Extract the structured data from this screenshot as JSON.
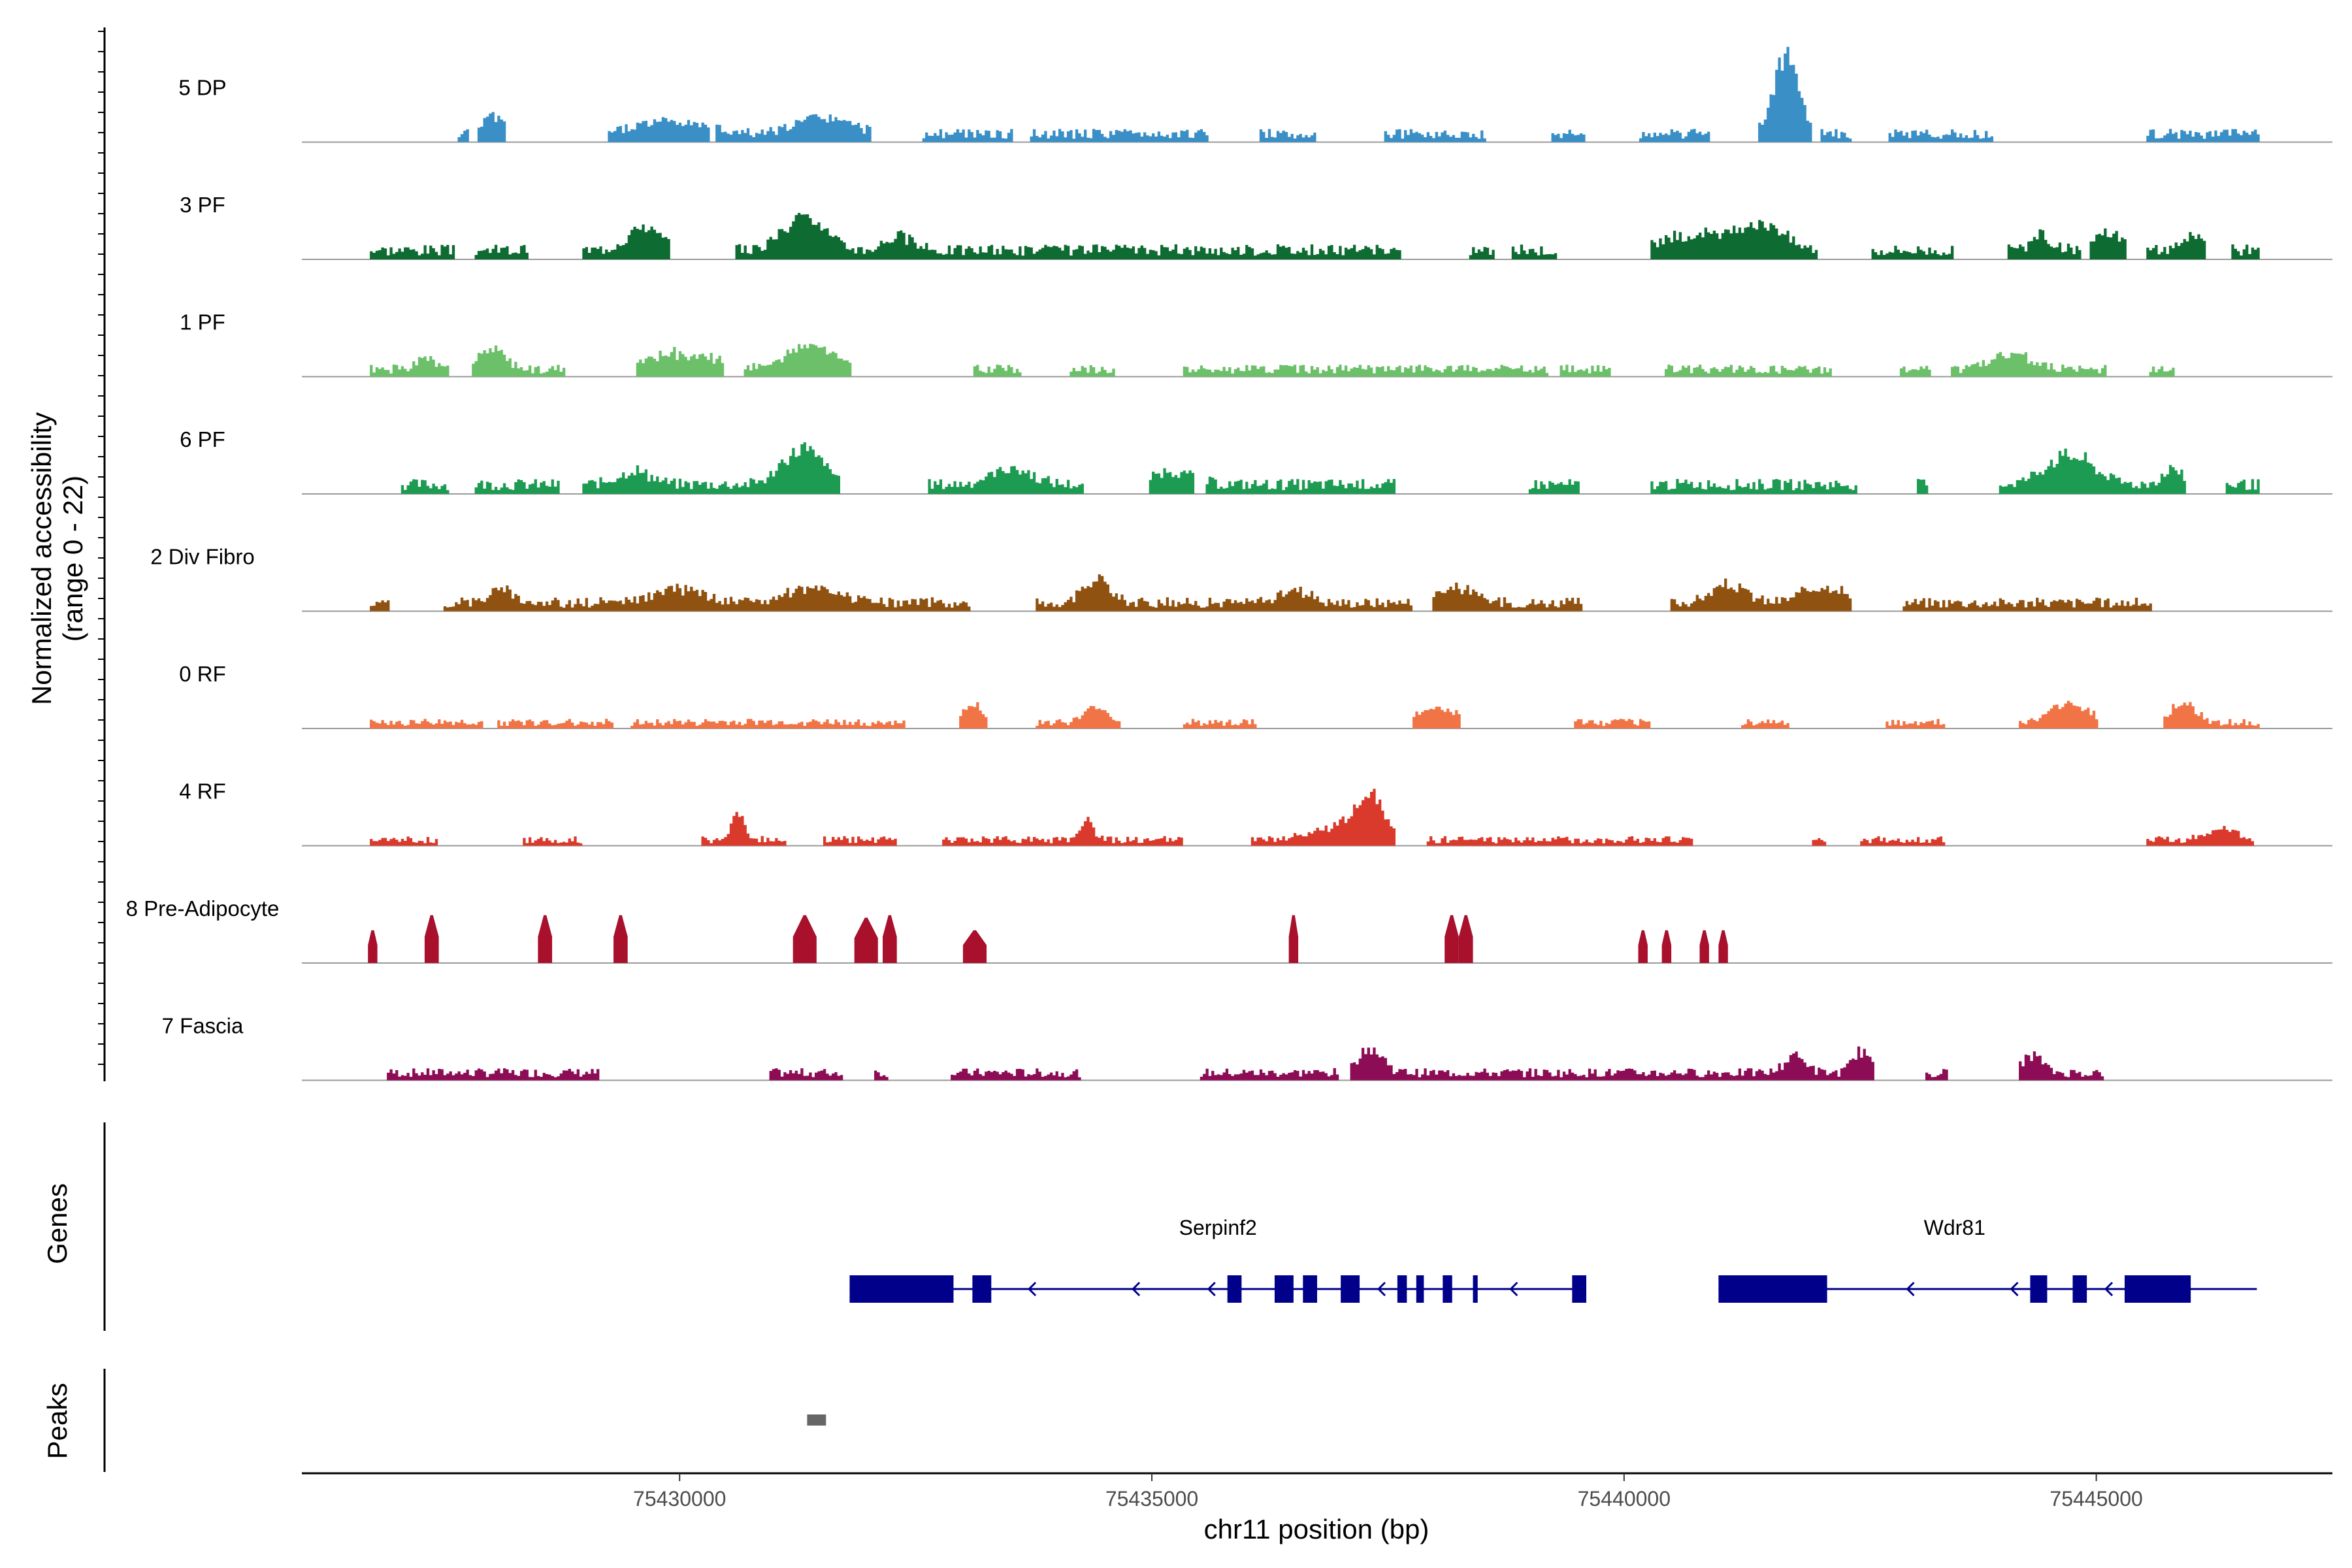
{
  "chart_data": {
    "type": "area",
    "title": "",
    "region": {
      "chromosome": "chr11",
      "start": 75426000,
      "end": 75447500
    },
    "xlabel": "chr11 position (bp)",
    "ylabel": "Normalized accessibility",
    "ylabel_sub": "(range 0 - 22)",
    "ylim": [
      0,
      22
    ],
    "x_ticks": [
      {
        "value": 75430000,
        "label": "75430000"
      },
      {
        "value": 75435000,
        "label": "75435000"
      },
      {
        "value": 75440000,
        "label": "75440000"
      },
      {
        "value": 75445000,
        "label": "75445000"
      }
    ],
    "panel_labels": {
      "genes": "Genes",
      "peaks": "Peaks"
    },
    "tracks": [
      {
        "name": "5 DP",
        "color": "#3A8FC7",
        "seed": 5,
        "density": 0.45,
        "base": 2.2,
        "peaks": [
          [
            75428000,
            3.5,
            160
          ],
          [
            75429900,
            3.0,
            500
          ],
          [
            75431500,
            3.5,
            400
          ],
          [
            75441700,
            18.0,
            180
          ]
        ]
      },
      {
        "name": "3 PF",
        "color": "#0E6B32",
        "seed": 3,
        "density": 0.6,
        "base": 2.5,
        "peaks": [
          [
            75429600,
            5.0,
            250
          ],
          [
            75431300,
            8.0,
            300
          ],
          [
            75432300,
            3.0,
            200
          ],
          [
            75440900,
            3.5,
            700
          ],
          [
            75441500,
            4.5,
            250
          ],
          [
            75444400,
            3.0,
            150
          ],
          [
            75445100,
            4.0,
            200
          ],
          [
            75446000,
            3.5,
            150
          ]
        ]
      },
      {
        "name": "1 PF",
        "color": "#6CC06A",
        "seed": 1,
        "density": 0.55,
        "base": 2.0,
        "peaks": [
          [
            75427300,
            2.5,
            120
          ],
          [
            75428000,
            4.0,
            200
          ],
          [
            75430000,
            3.5,
            500
          ],
          [
            75431400,
            5.5,
            350
          ],
          [
            75444100,
            3.0,
            300
          ]
        ]
      },
      {
        "name": "6 PF",
        "color": "#1E9B52",
        "seed": 6,
        "density": 0.55,
        "base": 2.5,
        "peaks": [
          [
            75429500,
            3.0,
            250
          ],
          [
            75431300,
            8.0,
            300
          ],
          [
            75433500,
            3.5,
            300
          ],
          [
            75435200,
            3.0,
            300
          ],
          [
            75444700,
            6.5,
            350
          ],
          [
            75445800,
            3.5,
            150
          ]
        ]
      },
      {
        "name": "2 Div Fibro",
        "color": "#8F5211",
        "seed": 2,
        "density": 0.62,
        "base": 2.3,
        "peaks": [
          [
            75428100,
            3.0,
            200
          ],
          [
            75430000,
            3.0,
            350
          ],
          [
            75431400,
            3.0,
            400
          ],
          [
            75434400,
            5.0,
            200
          ],
          [
            75436500,
            3.0,
            200
          ],
          [
            75438200,
            3.5,
            250
          ],
          [
            75441100,
            3.8,
            250
          ],
          [
            75442100,
            4.0,
            300
          ]
        ]
      },
      {
        "name": "0 RF",
        "color": "#F07446",
        "seed": 10,
        "density": 0.55,
        "base": 1.6,
        "peaks": [
          [
            75433100,
            4.0,
            150
          ],
          [
            75434400,
            3.5,
            150
          ],
          [
            75438000,
            3.0,
            300
          ],
          [
            75444700,
            4.0,
            300
          ],
          [
            75445900,
            4.0,
            200
          ]
        ]
      },
      {
        "name": "4 RF",
        "color": "#D93A2B",
        "seed": 4,
        "density": 0.5,
        "base": 1.6,
        "peaks": [
          [
            75430600,
            5.5,
            100
          ],
          [
            75434300,
            4.0,
            100
          ],
          [
            75437300,
            8.0,
            200
          ],
          [
            75437000,
            3.0,
            400
          ],
          [
            75446300,
            3.0,
            200
          ]
        ]
      },
      {
        "name": "8 Pre-Adipocyte",
        "color": "#A8102C",
        "seed": 8,
        "mode": "blocks",
        "blocks": [
          [
            75426700,
            75426800,
            6.5
          ],
          [
            75427300,
            75427450,
            9.5
          ],
          [
            75428500,
            75428650,
            9.5
          ],
          [
            75429300,
            75429450,
            9.5
          ],
          [
            75431200,
            75431450,
            9.5
          ],
          [
            75431850,
            75432100,
            9.0
          ],
          [
            75432150,
            75432300,
            9.5
          ],
          [
            75433000,
            75433250,
            6.5
          ],
          [
            75436450,
            75436550,
            9.5
          ],
          [
            75438100,
            75438250,
            9.5
          ],
          [
            75438250,
            75438400,
            9.5
          ],
          [
            75440150,
            75440250,
            6.5
          ],
          [
            75440400,
            75440500,
            6.5
          ],
          [
            75440800,
            75440900,
            6.5
          ],
          [
            75441000,
            75441100,
            6.5
          ]
        ]
      },
      {
        "name": "7 Fascia",
        "color": "#8C0C55",
        "seed": 7,
        "density": 0.45,
        "base": 2.0,
        "peaks": [
          [
            75437300,
            5.5,
            180
          ],
          [
            75441800,
            4.0,
            150
          ],
          [
            75442500,
            5.0,
            120
          ],
          [
            75444300,
            4.0,
            150
          ]
        ]
      }
    ],
    "genes": {
      "color": "#00008B",
      "items": [
        {
          "name": "Serpinf2",
          "start": 75431800,
          "end": 75439600,
          "strand": "-",
          "label_pos": 75435700,
          "exons": [
            [
              75431800,
              75432900
            ],
            [
              75433100,
              75433300
            ],
            [
              75435800,
              75435950
            ],
            [
              75436300,
              75436500
            ],
            [
              75436600,
              75436750
            ],
            [
              75437000,
              75437200
            ],
            [
              75437600,
              75437700
            ],
            [
              75437800,
              75437880
            ],
            [
              75438080,
              75438180
            ],
            [
              75438400,
              75438450
            ],
            [
              75439450,
              75439600
            ]
          ],
          "arrows": [
            75433700,
            75434800,
            75435600,
            75437400,
            75438800
          ]
        },
        {
          "name": "Wdr81",
          "start": 75441000,
          "end": 75446700,
          "strand": "-",
          "label_pos": 75443500,
          "exons": [
            [
              75441000,
              75442150
            ],
            [
              75444300,
              75444480
            ],
            [
              75444750,
              75444900
            ],
            [
              75445300,
              75446000
            ]
          ],
          "arrows": [
            75443000,
            75444100,
            75445100
          ]
        }
      ]
    },
    "peaks": {
      "color": "#666666",
      "items": [
        [
          75431350,
          75431550
        ]
      ]
    }
  }
}
